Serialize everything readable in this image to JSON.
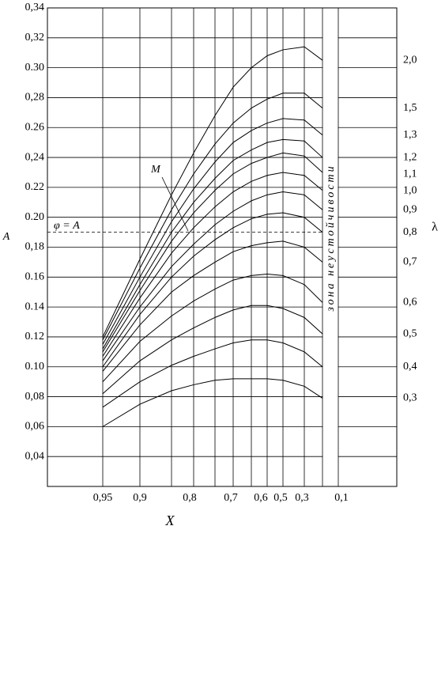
{
  "chart_data": {
    "type": "line",
    "y_label": "A",
    "x_label": "X",
    "legend_title": "λ",
    "categories": [
      "0,95",
      "0,9",
      null,
      "0,8",
      null,
      "0,7",
      null,
      "0,6",
      "0,5",
      "0,3",
      null,
      "0,1"
    ],
    "ylim": [
      0.02,
      0.34
    ],
    "yticks": [
      {
        "value": 0.04,
        "label": "0,04"
      },
      {
        "value": 0.06,
        "label": "0,06"
      },
      {
        "value": 0.08,
        "label": "0,08"
      },
      {
        "value": 0.1,
        "label": "0.10"
      },
      {
        "value": 0.12,
        "label": "0.12"
      },
      {
        "value": 0.14,
        "label": "0.14"
      },
      {
        "value": 0.16,
        "label": "0.16"
      },
      {
        "value": 0.18,
        "label": "0,18"
      },
      {
        "value": 0.2,
        "label": "0.20"
      },
      {
        "value": 0.22,
        "label": "0.22"
      },
      {
        "value": 0.24,
        "label": "0,24"
      },
      {
        "value": 0.26,
        "label": "0.26"
      },
      {
        "value": 0.28,
        "label": "0,28"
      },
      {
        "value": 0.3,
        "label": "0.30"
      },
      {
        "value": 0.32,
        "label": "0,32"
      },
      {
        "value": 0.34,
        "label": "0,34"
      }
    ],
    "grid": true,
    "color": "#000000",
    "reference_line": {
      "label": "φ = A",
      "value": 0.19
    },
    "zone_label": "зона неустойчивости",
    "annotation": "M",
    "series": [
      {
        "name": "2,0",
        "values": [
          0.12,
          0.172,
          0.215,
          0.243,
          0.268,
          0.287,
          0.3,
          0.308,
          0.312,
          0.314,
          0.305,
          null
        ]
      },
      {
        "name": "1,5",
        "values": [
          0.118,
          0.166,
          0.205,
          0.229,
          0.249,
          0.263,
          0.273,
          0.279,
          0.283,
          0.283,
          0.273,
          null
        ]
      },
      {
        "name": "1,3",
        "values": [
          0.115,
          0.16,
          0.197,
          0.219,
          0.237,
          0.25,
          0.258,
          0.263,
          0.266,
          0.265,
          0.255,
          null
        ]
      },
      {
        "name": "1,2",
        "values": [
          0.112,
          0.155,
          0.19,
          0.21,
          0.226,
          0.238,
          0.245,
          0.25,
          0.252,
          0.251,
          0.24,
          null
        ]
      },
      {
        "name": "1,1",
        "values": [
          0.11,
          0.151,
          0.184,
          0.203,
          0.218,
          0.229,
          0.236,
          0.24,
          0.243,
          0.241,
          0.23,
          null
        ]
      },
      {
        "name": "1,0",
        "values": [
          0.107,
          0.146,
          0.176,
          0.193,
          0.207,
          0.217,
          0.224,
          0.228,
          0.23,
          0.228,
          0.218,
          null
        ]
      },
      {
        "name": "0,9",
        "values": [
          0.104,
          0.14,
          0.167,
          0.182,
          0.195,
          0.204,
          0.211,
          0.215,
          0.217,
          0.215,
          0.205,
          null
        ]
      },
      {
        "name": "0,8",
        "values": [
          0.1,
          0.135,
          0.16,
          0.174,
          0.185,
          0.193,
          0.199,
          0.202,
          0.203,
          0.2,
          0.19,
          null
        ]
      },
      {
        "name": "0,7",
        "values": [
          0.097,
          0.128,
          0.15,
          0.161,
          0.17,
          0.177,
          0.181,
          0.183,
          0.184,
          0.18,
          0.17,
          null
        ]
      },
      {
        "name": "0,6",
        "values": [
          0.09,
          0.117,
          0.134,
          0.144,
          0.152,
          0.158,
          0.161,
          0.162,
          0.161,
          0.155,
          0.143,
          null
        ]
      },
      {
        "name": "0,5",
        "values": [
          0.082,
          0.104,
          0.118,
          0.126,
          0.133,
          0.138,
          0.141,
          0.141,
          0.139,
          0.133,
          0.122,
          null
        ]
      },
      {
        "name": "0,4",
        "values": [
          0.073,
          0.09,
          0.101,
          0.107,
          0.112,
          0.116,
          0.118,
          0.118,
          0.116,
          0.11,
          0.1,
          null
        ]
      },
      {
        "name": "0,3",
        "values": [
          0.06,
          0.075,
          0.084,
          0.088,
          0.091,
          0.092,
          0.092,
          0.092,
          0.091,
          0.087,
          0.079,
          null
        ]
      }
    ]
  }
}
